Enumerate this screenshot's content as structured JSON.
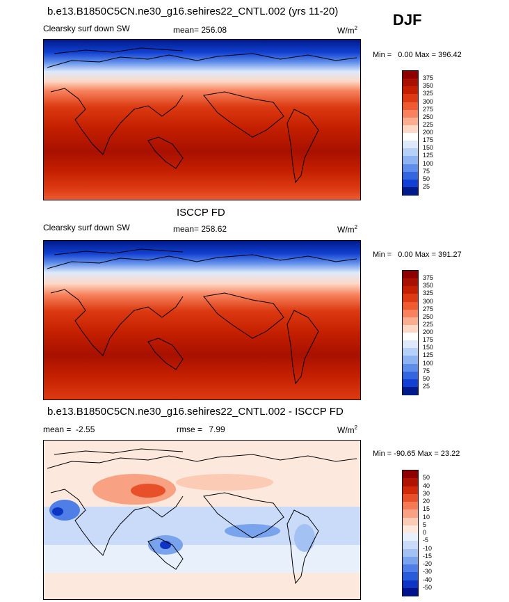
{
  "season": "DJF",
  "panels": [
    {
      "id": "model",
      "title": "b.e13.B1850C5CN.ne30_g16.sehires22_CNTL.002 (yrs 11-20)",
      "left_label": "Clearsky surf down SW",
      "stat_label": "mean=",
      "stat_value": "256.08",
      "units": "W/m",
      "units_sup": "2",
      "min_label": "Min =",
      "min_value": "0.00",
      "max_label": "Max =",
      "max_value": "396.42",
      "levels": [
        "375",
        "350",
        "325",
        "300",
        "275",
        "250",
        "225",
        "200",
        "175",
        "150",
        "125",
        "100",
        "75",
        "50",
        "25"
      ],
      "colors": [
        "#8e0000",
        "#a81000",
        "#c41f00",
        "#dc3a12",
        "#ee5a32",
        "#f7825d",
        "#fbae8f",
        "#fdd9c6",
        "#ffffff",
        "#dde9fb",
        "#b6d0f7",
        "#8eb3f2",
        "#5f8eea",
        "#3466e0",
        "#1240d2",
        "#001a8a"
      ]
    },
    {
      "id": "obs",
      "title": "ISCCP FD",
      "left_label": "Clearsky surf down SW",
      "stat_label": "mean=",
      "stat_value": "258.62",
      "units": "W/m",
      "units_sup": "2",
      "min_label": "Min =",
      "min_value": "0.00",
      "max_label": "Max =",
      "max_value": "391.27",
      "levels": [
        "375",
        "350",
        "325",
        "300",
        "275",
        "250",
        "225",
        "200",
        "175",
        "150",
        "125",
        "100",
        "75",
        "50",
        "25"
      ],
      "colors": [
        "#8e0000",
        "#a81000",
        "#c41f00",
        "#dc3a12",
        "#ee5a32",
        "#f7825d",
        "#fbae8f",
        "#fdd9c6",
        "#ffffff",
        "#dde9fb",
        "#b6d0f7",
        "#8eb3f2",
        "#5f8eea",
        "#3466e0",
        "#1240d2",
        "#001a8a"
      ]
    },
    {
      "id": "diff",
      "title": "b.e13.B1850C5CN.ne30_g16.sehires22_CNTL.002 - ISCCP FD",
      "left_label": "mean =  -2.55",
      "stat_label": "rmse =",
      "stat_value": "7.99",
      "units": "W/m",
      "units_sup": "2",
      "min_label": "Min =",
      "min_value": "-90.65",
      "max_label": "Max =",
      "max_value": "23.22",
      "levels": [
        "50",
        "40",
        "30",
        "20",
        "15",
        "10",
        "5",
        "0",
        "-5",
        "-10",
        "-15",
        "-20",
        "-30",
        "-40",
        "-50"
      ],
      "colors": [
        "#8e0000",
        "#b01400",
        "#d02a0a",
        "#e8502a",
        "#f47a55",
        "#f9a283",
        "#fccbb5",
        "#fde8dd",
        "#e8f0fc",
        "#c9dbf8",
        "#a3c1f3",
        "#7aa3ee",
        "#4f7fe6",
        "#2a5bd9",
        "#0d34c2",
        "#00128a"
      ]
    }
  ]
}
